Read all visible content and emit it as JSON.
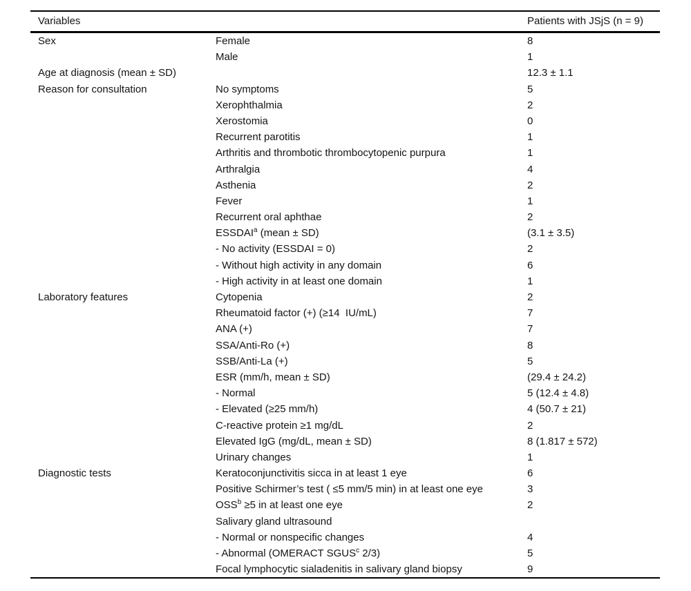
{
  "page": {
    "background": "#ffffff",
    "text_color": "#141414",
    "rule_color": "#000000"
  },
  "table": {
    "header": {
      "col1": "Variables",
      "col3": "Patients with JSjS (n = 9)"
    },
    "rows": [
      {
        "group": "Sex",
        "item": "Female",
        "value": "8"
      },
      {
        "group": "",
        "item": "Male",
        "value": "1"
      },
      {
        "group": "Age at diagnosis (mean ± SD)",
        "item": "",
        "value": "12.3 ± 1.1"
      },
      {
        "group": "Reason for consultation",
        "item": "No symptoms",
        "value": "5"
      },
      {
        "group": "",
        "item": "Xerophthalmia",
        "value": "2"
      },
      {
        "group": "",
        "item": "Xerostomia",
        "value": "0"
      },
      {
        "group": "",
        "item": "Recurrent parotitis",
        "value": "1"
      },
      {
        "group": "",
        "item": "Arthritis and thrombotic thrombocytopenic purpura",
        "value": "1"
      },
      {
        "group": "",
        "item": "Arthralgia",
        "value": "4"
      },
      {
        "group": "",
        "item": "Asthenia",
        "value": "2"
      },
      {
        "group": "",
        "item": "Fever",
        "value": "1"
      },
      {
        "group": "",
        "item": "Recurrent oral aphthae",
        "value": "2"
      },
      {
        "group": "",
        "item": "ESSDAI^{a} (mean ± SD)",
        "value": "(3.1 ± 3.5)"
      },
      {
        "group": "",
        "item": "- No activity (ESSDAI = 0)",
        "value": "2"
      },
      {
        "group": "",
        "item": "- Without high activity in any domain",
        "value": "6"
      },
      {
        "group": "",
        "item": "- High activity in at least one domain",
        "value": "1"
      },
      {
        "group": "Laboratory features",
        "item": "Cytopenia",
        "value": "2"
      },
      {
        "group": "",
        "item": "Rheumatoid factor (+) (≥14  IU/mL)",
        "value": "7"
      },
      {
        "group": "",
        "item": "ANA (+)",
        "value": "7"
      },
      {
        "group": "",
        "item": "SSA/Anti-Ro (+)",
        "value": "8"
      },
      {
        "group": "",
        "item": "SSB/Anti-La (+)",
        "value": "5"
      },
      {
        "group": "",
        "item": "ESR (mm/h, mean ± SD)",
        "value": "(29.4 ± 24.2)"
      },
      {
        "group": "",
        "item": "- Normal",
        "value": "5 (12.4 ± 4.8)"
      },
      {
        "group": "",
        "item": "- Elevated (≥25 mm/h)",
        "value": "4 (50.7 ± 21)"
      },
      {
        "group": "",
        "item": "C-reactive protein ≥1 mg/dL",
        "value": "2"
      },
      {
        "group": "",
        "item": "Elevated IgG (mg/dL, mean ± SD)",
        "value": "8 (1.817 ± 572)"
      },
      {
        "group": "",
        "item": "Urinary changes",
        "value": "1"
      },
      {
        "group": "Diagnostic tests",
        "item": "Keratoconjunctivitis sicca in at least 1 eye",
        "value": "6"
      },
      {
        "group": "",
        "item": "Positive Schirmer’s test ( ≤5 mm/5 min) in at least one eye",
        "value": "3"
      },
      {
        "group": "",
        "item": "OSS^{b} ≥5 in at least one eye",
        "value": "2"
      },
      {
        "group": "",
        "item": "Salivary gland ultrasound",
        "value": ""
      },
      {
        "group": "",
        "item": "- Normal or nonspecific changes",
        "value": "4"
      },
      {
        "group": "",
        "item": "- Abnormal (OMERACT SGUS^{c} 2/3)",
        "value": "5"
      },
      {
        "group": "",
        "item": "Focal lymphocytic sialadenitis in salivary gland biopsy",
        "value": "9"
      }
    ]
  }
}
